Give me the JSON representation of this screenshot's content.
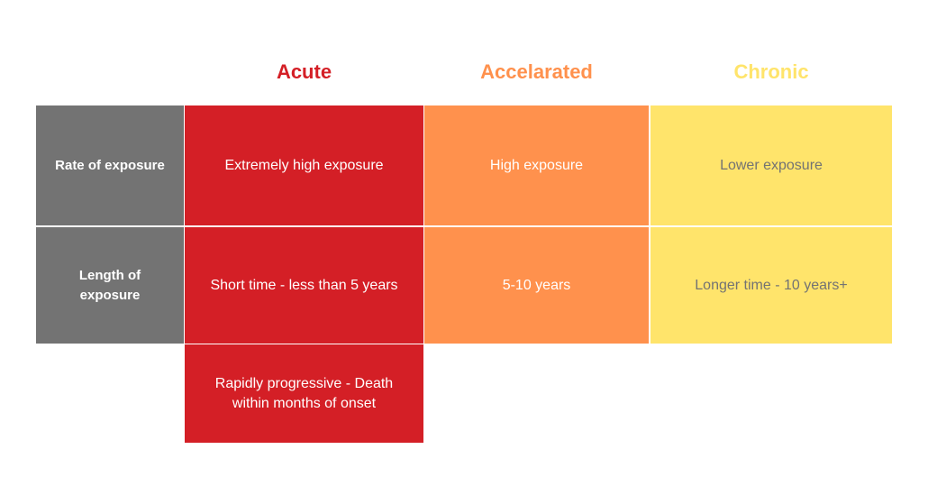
{
  "columns": {
    "acute": {
      "label": "Acute",
      "color": "#d41f26"
    },
    "accelerated": {
      "label": "Accelarated",
      "color": "#ff914d"
    },
    "chronic": {
      "label": "Chronic",
      "color": "#ffe46b"
    }
  },
  "rows": {
    "rate": {
      "label": "Rate of exposure"
    },
    "length": {
      "label": "Length of exposure"
    }
  },
  "cells": {
    "rate_acute": "Extremely high exposure",
    "rate_accelerated": "High exposure",
    "rate_chronic": "Lower exposure",
    "length_acute": "Short time - less than 5 years",
    "length_accelerated": "5-10 years",
    "length_chronic": "Longer time - 10 years+",
    "outcome_acute": "Rapidly progressive - Death within months of onset"
  },
  "colors": {
    "label_bg": "#737373",
    "acute_bg": "#d41f26",
    "accelerated_bg": "#ff914d",
    "chronic_bg": "#ffe46b",
    "chronic_text": "#737373"
  }
}
